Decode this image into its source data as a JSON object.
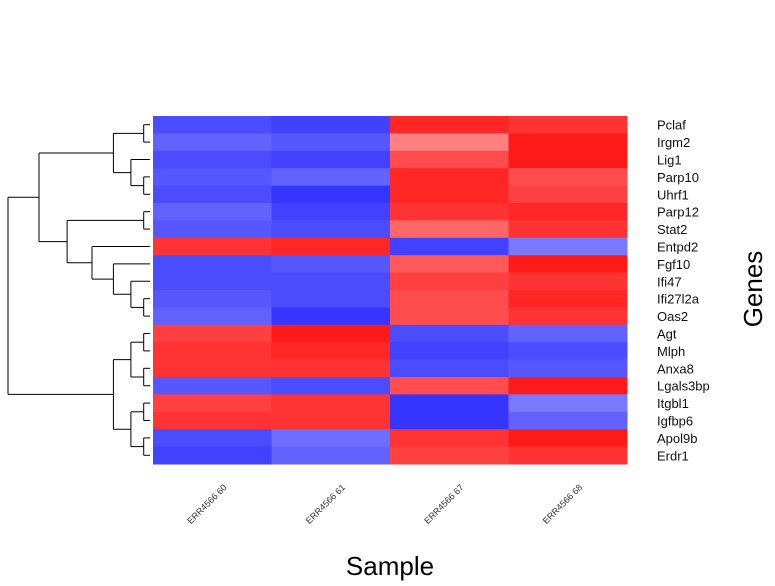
{
  "chart_data": {
    "type": "heatmap",
    "title": "",
    "xlabel": "Sample",
    "ylabel": "Genes",
    "columns": [
      "ERR4566 60",
      "ERR4566 61",
      "ERR4566 67",
      "ERR4566 68"
    ],
    "gene_labels": [
      "Pclaf",
      "Irgm2",
      "Lig1",
      "Parp10",
      "Uhrf1",
      "Parp12",
      "Stat2",
      "Entpd2",
      "Fgf10",
      "Ifi47",
      "Ifi27l2a",
      "Oas2",
      "Agt",
      "Mlph",
      "Anxa8",
      "Lgals3bp",
      "Itgbl1",
      "Igfbp6",
      "Apol9b",
      "Erdr1"
    ],
    "color_scale": {
      "low": "#1f1fff",
      "mid": "#ffffff",
      "high": "#ff0000"
    },
    "values": [
      [
        -0.8,
        -0.85,
        0.85,
        0.8
      ],
      [
        -0.7,
        -0.75,
        0.5,
        0.9
      ],
      [
        -0.8,
        -0.85,
        0.7,
        0.9
      ],
      [
        -0.75,
        -0.7,
        0.85,
        0.7
      ],
      [
        -0.8,
        -0.9,
        0.85,
        0.75
      ],
      [
        -0.7,
        -0.85,
        0.8,
        0.85
      ],
      [
        -0.75,
        -0.8,
        0.6,
        0.8
      ],
      [
        0.8,
        0.85,
        -0.85,
        -0.6
      ],
      [
        -0.8,
        -0.75,
        0.65,
        0.9
      ],
      [
        -0.8,
        -0.8,
        0.75,
        0.8
      ],
      [
        -0.75,
        -0.8,
        0.7,
        0.85
      ],
      [
        -0.7,
        -0.9,
        0.7,
        0.8
      ],
      [
        0.75,
        0.9,
        -0.8,
        -0.7
      ],
      [
        0.8,
        0.85,
        -0.85,
        -0.8
      ],
      [
        0.8,
        0.8,
        -0.8,
        -0.75
      ],
      [
        -0.75,
        -0.8,
        0.7,
        0.9
      ],
      [
        0.75,
        0.8,
        -0.9,
        -0.6
      ],
      [
        0.8,
        0.8,
        -0.9,
        -0.7
      ],
      [
        -0.8,
        -0.65,
        0.8,
        0.9
      ],
      [
        -0.85,
        -0.7,
        0.75,
        0.8
      ]
    ],
    "dendrogram": {
      "children": [
        {
          "children": [
            {
              "children": [
                {
                  "children": [
                    {
                      "leaf": 0
                    },
                    {
                      "leaf": 1
                    }
                  ]
                },
                {
                  "children": [
                    {
                      "leaf": 2
                    },
                    {
                      "children": [
                        {
                          "leaf": 3
                        },
                        {
                          "leaf": 4
                        }
                      ]
                    }
                  ]
                }
              ]
            },
            {
              "children": [
                {
                  "children": [
                    {
                      "leaf": 5
                    },
                    {
                      "leaf": 6
                    }
                  ]
                },
                {
                  "children": [
                    {
                      "leaf": 7
                    },
                    {
                      "children": [
                        {
                          "leaf": 8
                        },
                        {
                          "children": [
                            {
                              "leaf": 9
                            },
                            {
                              "children": [
                                {
                                  "leaf": 10
                                },
                                {
                                  "leaf": 11
                                }
                              ]
                            }
                          ]
                        }
                      ]
                    }
                  ]
                }
              ]
            }
          ]
        },
        {
          "children": [
            {
              "children": [
                {
                  "children": [
                    {
                      "leaf": 12
                    },
                    {
                      "leaf": 13
                    }
                  ]
                },
                {
                  "children": [
                    {
                      "leaf": 14
                    },
                    {
                      "leaf": 15
                    }
                  ]
                }
              ]
            },
            {
              "children": [
                {
                  "children": [
                    {
                      "leaf": 16
                    },
                    {
                      "leaf": 17
                    }
                  ]
                },
                {
                  "children": [
                    {
                      "leaf": 18
                    },
                    {
                      "leaf": 19
                    }
                  ]
                }
              ]
            }
          ]
        }
      ]
    }
  }
}
